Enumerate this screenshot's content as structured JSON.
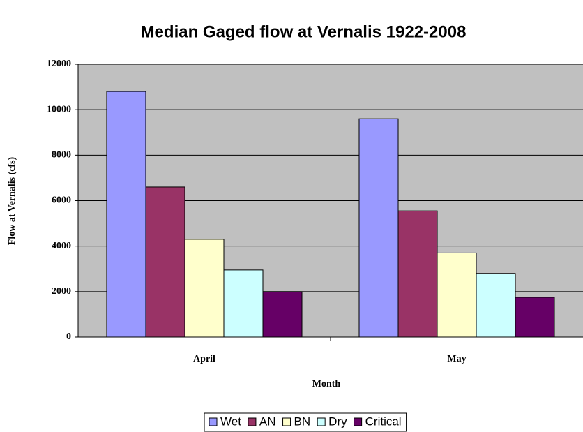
{
  "chart_data": {
    "type": "bar",
    "title": "Median Gaged flow at Vernalis 1922-2008",
    "x_label": "Month",
    "y_label": "Flow at Vernalis (cfs)",
    "categories": [
      "April",
      "May"
    ],
    "series": [
      {
        "name": "Wet",
        "color": "#9999ff",
        "values": [
          10800,
          9600
        ]
      },
      {
        "name": "AN",
        "color": "#993366",
        "values": [
          6600,
          5550
        ]
      },
      {
        "name": "BN",
        "color": "#ffffcc",
        "values": [
          4300,
          3700
        ]
      },
      {
        "name": "Dry",
        "color": "#ccffff",
        "values": [
          2950,
          2800
        ]
      },
      {
        "name": "Critical",
        "color": "#660066",
        "values": [
          2000,
          1750
        ]
      }
    ],
    "ylim": [
      0,
      12000
    ],
    "yticks": [
      0,
      2000,
      4000,
      6000,
      8000,
      10000,
      12000
    ],
    "grid": true,
    "legend": "bottom",
    "plot_background": "#c0c0c0"
  }
}
